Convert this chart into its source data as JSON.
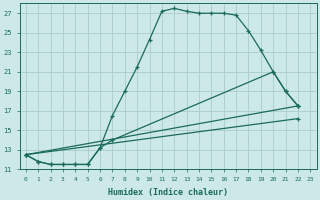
{
  "xlabel": "Humidex (Indice chaleur)",
  "bg_color": "#cce8e8",
  "grid_color": "#aacccc",
  "line_color": "#1a6b5a",
  "xlim": [
    -0.5,
    23.5
  ],
  "ylim": [
    11,
    28
  ],
  "xticks": [
    0,
    1,
    2,
    3,
    4,
    5,
    6,
    7,
    8,
    9,
    10,
    11,
    12,
    13,
    14,
    15,
    16,
    17,
    18,
    19,
    20,
    21,
    22,
    23
  ],
  "yticks": [
    11,
    13,
    15,
    17,
    19,
    21,
    23,
    25,
    27
  ],
  "line1_x": [
    0,
    1,
    2,
    3,
    4,
    5,
    6,
    7,
    8,
    9,
    10,
    11,
    12,
    13,
    14,
    15,
    16,
    17,
    18,
    19,
    20,
    21,
    22
  ],
  "line1_y": [
    12.5,
    11.8,
    11.5,
    11.5,
    11.5,
    11.5,
    13.2,
    16.5,
    19.0,
    21.5,
    24.3,
    27.2,
    27.5,
    27.2,
    27.0,
    27.0,
    27.0,
    26.8,
    25.2,
    23.2,
    21.0,
    19.0,
    17.5
  ],
  "line2_x": [
    0,
    1,
    2,
    3,
    4,
    5,
    6,
    7,
    20,
    21,
    22
  ],
  "line2_y": [
    12.5,
    11.8,
    11.5,
    11.5,
    11.5,
    11.5,
    13.2,
    14.0,
    21.0,
    19.0,
    17.5
  ],
  "line3_x": [
    0,
    22
  ],
  "line3_y": [
    12.5,
    17.5
  ],
  "line4_x": [
    0,
    22
  ],
  "line4_y": [
    12.5,
    16.2
  ]
}
